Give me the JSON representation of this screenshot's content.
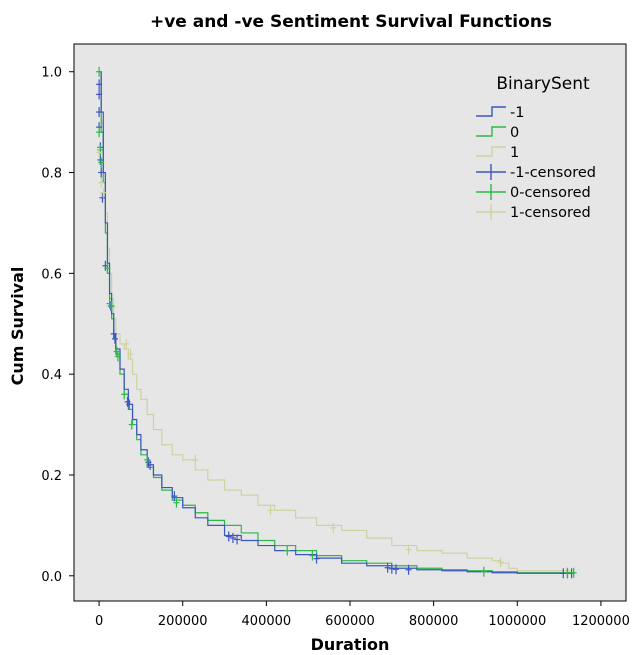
{
  "chart_data": {
    "type": "line",
    "subtype": "step-survival",
    "title": "+ve and -ve Sentiment Survival Functions",
    "xlabel": "Duration",
    "ylabel": "Cum Survival",
    "xlim": [
      -60000,
      1260000
    ],
    "ylim": [
      -0.05,
      1.055
    ],
    "xticks": [
      0,
      200000,
      400000,
      600000,
      800000,
      1000000,
      1200000
    ],
    "yticks": [
      0.0,
      0.2,
      0.4,
      0.6,
      0.8,
      1.0
    ],
    "xtick_labels": [
      "0",
      "200000",
      "400000",
      "600000",
      "800000",
      "1000000",
      "1200000"
    ],
    "ytick_labels": [
      "0.0",
      "0.2",
      "0.4",
      "0.6",
      "0.8",
      "1.0"
    ],
    "plot_background": "#e6e6e6",
    "grid": false,
    "legend": {
      "title": "BinarySent",
      "position": "top-right",
      "entries": [
        "-1",
        "0",
        "1",
        "-1-censored",
        "0-censored",
        "1-censored"
      ]
    },
    "colors": {
      "neg": "#3d55c0",
      "zero": "#2db84a",
      "pos": "#cfd1a0"
    },
    "series": [
      {
        "name": "-1",
        "color": "#3d55c0",
        "x": [
          0,
          5000,
          10000,
          15000,
          20000,
          25000,
          30000,
          35000,
          40000,
          50000,
          60000,
          70000,
          80000,
          90000,
          100000,
          115000,
          130000,
          150000,
          175000,
          200000,
          230000,
          260000,
          300000,
          340000,
          380000,
          420000,
          470000,
          520000,
          580000,
          640000,
          700000,
          760000,
          820000,
          880000,
          940000,
          1000000,
          1060000,
          1130000
        ],
        "y": [
          1.0,
          0.92,
          0.8,
          0.7,
          0.62,
          0.56,
          0.52,
          0.48,
          0.45,
          0.41,
          0.37,
          0.34,
          0.31,
          0.28,
          0.25,
          0.22,
          0.2,
          0.175,
          0.155,
          0.135,
          0.115,
          0.1,
          0.08,
          0.07,
          0.06,
          0.05,
          0.042,
          0.035,
          0.025,
          0.02,
          0.015,
          0.012,
          0.01,
          0.008,
          0.006,
          0.005,
          0.005,
          0.005
        ]
      },
      {
        "name": "0",
        "color": "#2db84a",
        "x": [
          0,
          5000,
          10000,
          15000,
          20000,
          25000,
          30000,
          35000,
          40000,
          50000,
          60000,
          70000,
          80000,
          90000,
          100000,
          115000,
          130000,
          150000,
          175000,
          200000,
          230000,
          260000,
          300000,
          340000,
          380000,
          420000,
          470000,
          520000,
          580000,
          640000,
          700000,
          760000,
          820000,
          880000,
          940000,
          1000000,
          1060000,
          1130000
        ],
        "y": [
          1.0,
          0.88,
          0.78,
          0.68,
          0.6,
          0.55,
          0.51,
          0.47,
          0.44,
          0.4,
          0.36,
          0.33,
          0.3,
          0.27,
          0.24,
          0.215,
          0.195,
          0.17,
          0.15,
          0.14,
          0.125,
          0.11,
          0.1,
          0.085,
          0.07,
          0.06,
          0.05,
          0.04,
          0.03,
          0.025,
          0.02,
          0.015,
          0.012,
          0.01,
          0.008,
          0.006,
          0.006,
          0.006
        ]
      },
      {
        "name": "1",
        "color": "#cfd1a0",
        "x": [
          0,
          5000,
          10000,
          15000,
          20000,
          25000,
          30000,
          35000,
          40000,
          50000,
          60000,
          70000,
          80000,
          90000,
          100000,
          115000,
          130000,
          150000,
          175000,
          200000,
          230000,
          260000,
          300000,
          340000,
          380000,
          420000,
          470000,
          520000,
          580000,
          640000,
          700000,
          760000,
          820000,
          880000,
          940000,
          960000,
          980000,
          1000000,
          1060000,
          1130000
        ],
        "y": [
          1.0,
          0.9,
          0.8,
          0.72,
          0.65,
          0.6,
          0.55,
          0.51,
          0.48,
          0.46,
          0.45,
          0.43,
          0.4,
          0.37,
          0.35,
          0.32,
          0.29,
          0.26,
          0.24,
          0.23,
          0.21,
          0.19,
          0.17,
          0.16,
          0.14,
          0.13,
          0.115,
          0.1,
          0.09,
          0.075,
          0.06,
          0.05,
          0.045,
          0.035,
          0.03,
          0.025,
          0.015,
          0.01,
          0.01,
          0.01
        ]
      }
    ],
    "censored": [
      {
        "name": "-1-censored",
        "color": "#3d55c0",
        "points": [
          [
            0,
            0.975
          ],
          [
            0,
            0.955
          ],
          [
            0,
            0.92
          ],
          [
            0,
            0.89
          ],
          [
            3000,
            0.85
          ],
          [
            3000,
            0.825
          ],
          [
            5000,
            0.8
          ],
          [
            8000,
            0.75
          ],
          [
            15000,
            0.615
          ],
          [
            28000,
            0.535
          ],
          [
            35000,
            0.48
          ],
          [
            38000,
            0.47
          ],
          [
            68000,
            0.345
          ],
          [
            72000,
            0.34
          ],
          [
            118000,
            0.225
          ],
          [
            122000,
            0.22
          ],
          [
            180000,
            0.158
          ],
          [
            310000,
            0.078
          ],
          [
            320000,
            0.075
          ],
          [
            330000,
            0.072
          ],
          [
            520000,
            0.034
          ],
          [
            690000,
            0.016
          ],
          [
            700000,
            0.014
          ],
          [
            710000,
            0.013
          ],
          [
            740000,
            0.012
          ],
          [
            1110000,
            0.005
          ],
          [
            1120000,
            0.005
          ],
          [
            1130000,
            0.005
          ]
        ]
      },
      {
        "name": "0-censored",
        "color": "#2db84a",
        "points": [
          [
            0,
            1.0
          ],
          [
            0,
            0.88
          ],
          [
            3000,
            0.845
          ],
          [
            5000,
            0.82
          ],
          [
            20000,
            0.61
          ],
          [
            25000,
            0.54
          ],
          [
            30000,
            0.535
          ],
          [
            42000,
            0.445
          ],
          [
            45000,
            0.435
          ],
          [
            60000,
            0.36
          ],
          [
            78000,
            0.3
          ],
          [
            115000,
            0.23
          ],
          [
            185000,
            0.145
          ],
          [
            450000,
            0.05
          ],
          [
            510000,
            0.04
          ],
          [
            920000,
            0.008
          ],
          [
            1120000,
            0.006
          ],
          [
            1135000,
            0.006
          ]
        ]
      },
      {
        "name": "1-censored",
        "color": "#cfd1a0",
        "points": [
          [
            0,
            0.84
          ],
          [
            5000,
            0.78
          ],
          [
            10000,
            0.76
          ],
          [
            65000,
            0.46
          ],
          [
            75000,
            0.44
          ],
          [
            230000,
            0.23
          ],
          [
            410000,
            0.13
          ],
          [
            560000,
            0.095
          ],
          [
            740000,
            0.052
          ],
          [
            960000,
            0.027
          ]
        ]
      }
    ]
  }
}
